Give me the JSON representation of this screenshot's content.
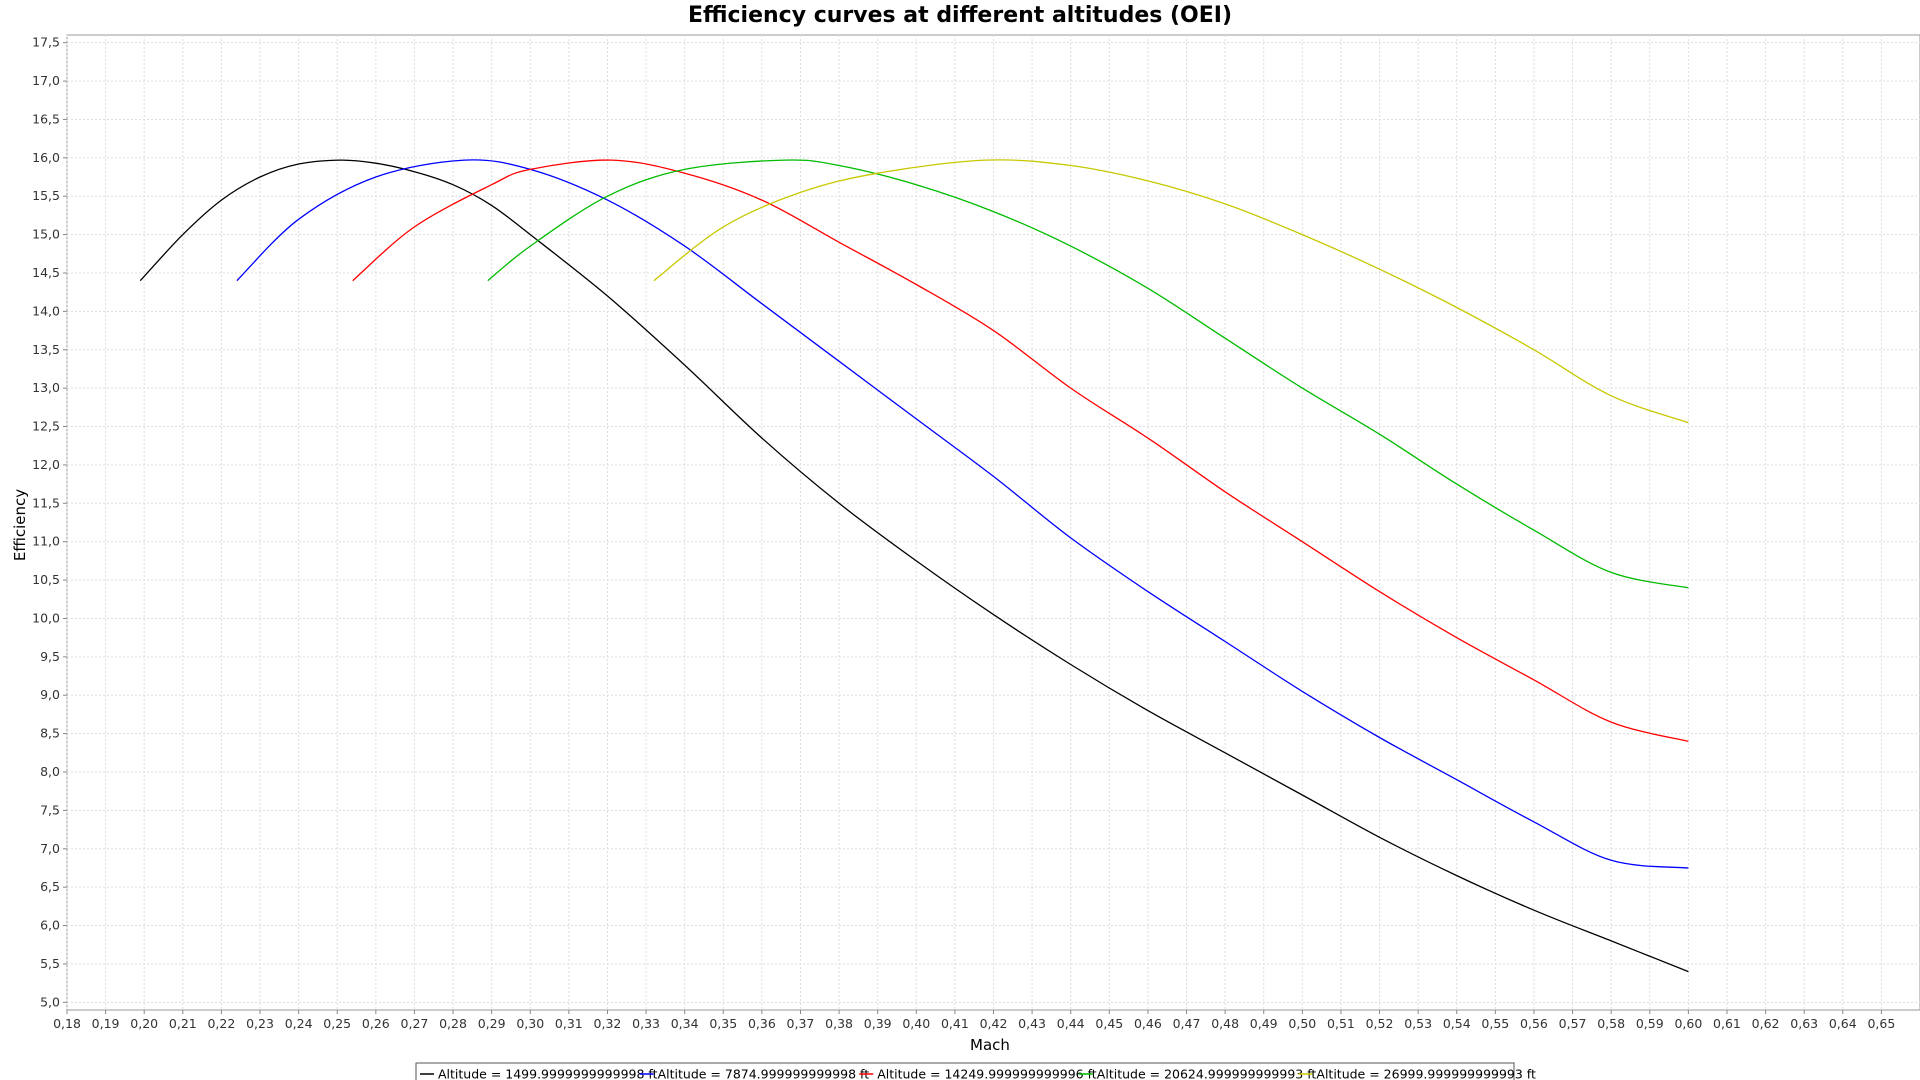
{
  "chart_data": {
    "type": "line",
    "title": "Efficiency curves at different altitudes (OEI)",
    "xlabel": "Mach",
    "ylabel": "Efficiency",
    "xlim": [
      0.18,
      0.66
    ],
    "ylim": [
      4.9,
      17.6
    ],
    "x_ticks": [
      "0,18",
      "0,19",
      "0,20",
      "0,21",
      "0,22",
      "0,23",
      "0,24",
      "0,25",
      "0,26",
      "0,27",
      "0,28",
      "0,29",
      "0,30",
      "0,31",
      "0,32",
      "0,33",
      "0,34",
      "0,35",
      "0,36",
      "0,37",
      "0,38",
      "0,39",
      "0,40",
      "0,41",
      "0,42",
      "0,43",
      "0,44",
      "0,45",
      "0,46",
      "0,47",
      "0,48",
      "0,49",
      "0,50",
      "0,51",
      "0,52",
      "0,53",
      "0,54",
      "0,55",
      "0,56",
      "0,57",
      "0,58",
      "0,59",
      "0,60",
      "0,61",
      "0,62",
      "0,63",
      "0,64",
      "0,65"
    ],
    "y_ticks": [
      "5,0",
      "5,5",
      "6,0",
      "6,5",
      "7,0",
      "7,5",
      "8,0",
      "8,5",
      "9,0",
      "9,5",
      "10,0",
      "10,5",
      "11,0",
      "11,5",
      "12,0",
      "12,5",
      "13,0",
      "13,5",
      "14,0",
      "14,5",
      "15,0",
      "15,5",
      "16,0",
      "16,5",
      "17,0",
      "17,5"
    ],
    "grid": true,
    "legend_position": "bottom",
    "series": [
      {
        "name": "Altitude = 1499.9999999999998 ft",
        "color": "#000000",
        "x": [
          0.199,
          0.21,
          0.22,
          0.23,
          0.24,
          0.251,
          0.26,
          0.27,
          0.28,
          0.29,
          0.3,
          0.32,
          0.34,
          0.36,
          0.38,
          0.4,
          0.42,
          0.44,
          0.46,
          0.48,
          0.5,
          0.52,
          0.54,
          0.56,
          0.58,
          0.6
        ],
        "y": [
          14.4,
          15.0,
          15.45,
          15.75,
          15.92,
          15.97,
          15.93,
          15.82,
          15.65,
          15.38,
          15.0,
          14.2,
          13.3,
          12.35,
          11.5,
          10.75,
          10.05,
          9.4,
          8.8,
          8.25,
          7.7,
          7.15,
          6.65,
          6.2,
          5.8,
          5.4
        ]
      },
      {
        "name": "Altitude = 7874.999999999998 ft",
        "color": "#0000ff",
        "x": [
          0.224,
          0.24,
          0.26,
          0.283,
          0.3,
          0.32,
          0.34,
          0.36,
          0.38,
          0.4,
          0.42,
          0.44,
          0.46,
          0.48,
          0.5,
          0.52,
          0.54,
          0.56,
          0.58,
          0.6
        ],
        "y": [
          14.4,
          15.2,
          15.75,
          15.97,
          15.85,
          15.45,
          14.85,
          14.1,
          13.35,
          12.6,
          11.85,
          11.05,
          10.35,
          9.7,
          9.05,
          8.45,
          7.9,
          7.35,
          6.85,
          6.75
        ]
      },
      {
        "name": "Altitude = 14249.999999999996 ft",
        "color": "#ff0000",
        "x": [
          0.254,
          0.27,
          0.29,
          0.3,
          0.321,
          0.34,
          0.36,
          0.38,
          0.4,
          0.42,
          0.44,
          0.46,
          0.48,
          0.5,
          0.52,
          0.54,
          0.56,
          0.58,
          0.6
        ],
        "y": [
          14.4,
          15.1,
          15.65,
          15.85,
          15.97,
          15.8,
          15.45,
          14.9,
          14.35,
          13.75,
          13.0,
          12.35,
          11.65,
          11.0,
          10.35,
          9.75,
          9.2,
          8.65,
          8.4
        ]
      },
      {
        "name": "Altitude = 20624.999999999993 ft",
        "color": "#00bb00",
        "x": [
          0.289,
          0.3,
          0.32,
          0.34,
          0.366,
          0.38,
          0.4,
          0.42,
          0.44,
          0.46,
          0.48,
          0.5,
          0.52,
          0.54,
          0.56,
          0.58,
          0.6
        ],
        "y": [
          14.4,
          14.85,
          15.5,
          15.85,
          15.97,
          15.9,
          15.65,
          15.3,
          14.85,
          14.3,
          13.65,
          13.0,
          12.4,
          11.75,
          11.15,
          10.6,
          10.4
        ]
      },
      {
        "name": "Altitude = 26999.999999999993 ft",
        "color": "#c8c800",
        "x": [
          0.332,
          0.35,
          0.37,
          0.39,
          0.418,
          0.44,
          0.46,
          0.48,
          0.5,
          0.52,
          0.54,
          0.56,
          0.58,
          0.6
        ],
        "y": [
          14.4,
          15.1,
          15.55,
          15.8,
          15.97,
          15.9,
          15.7,
          15.4,
          15.0,
          14.55,
          14.05,
          13.5,
          12.9,
          12.55
        ]
      }
    ]
  }
}
